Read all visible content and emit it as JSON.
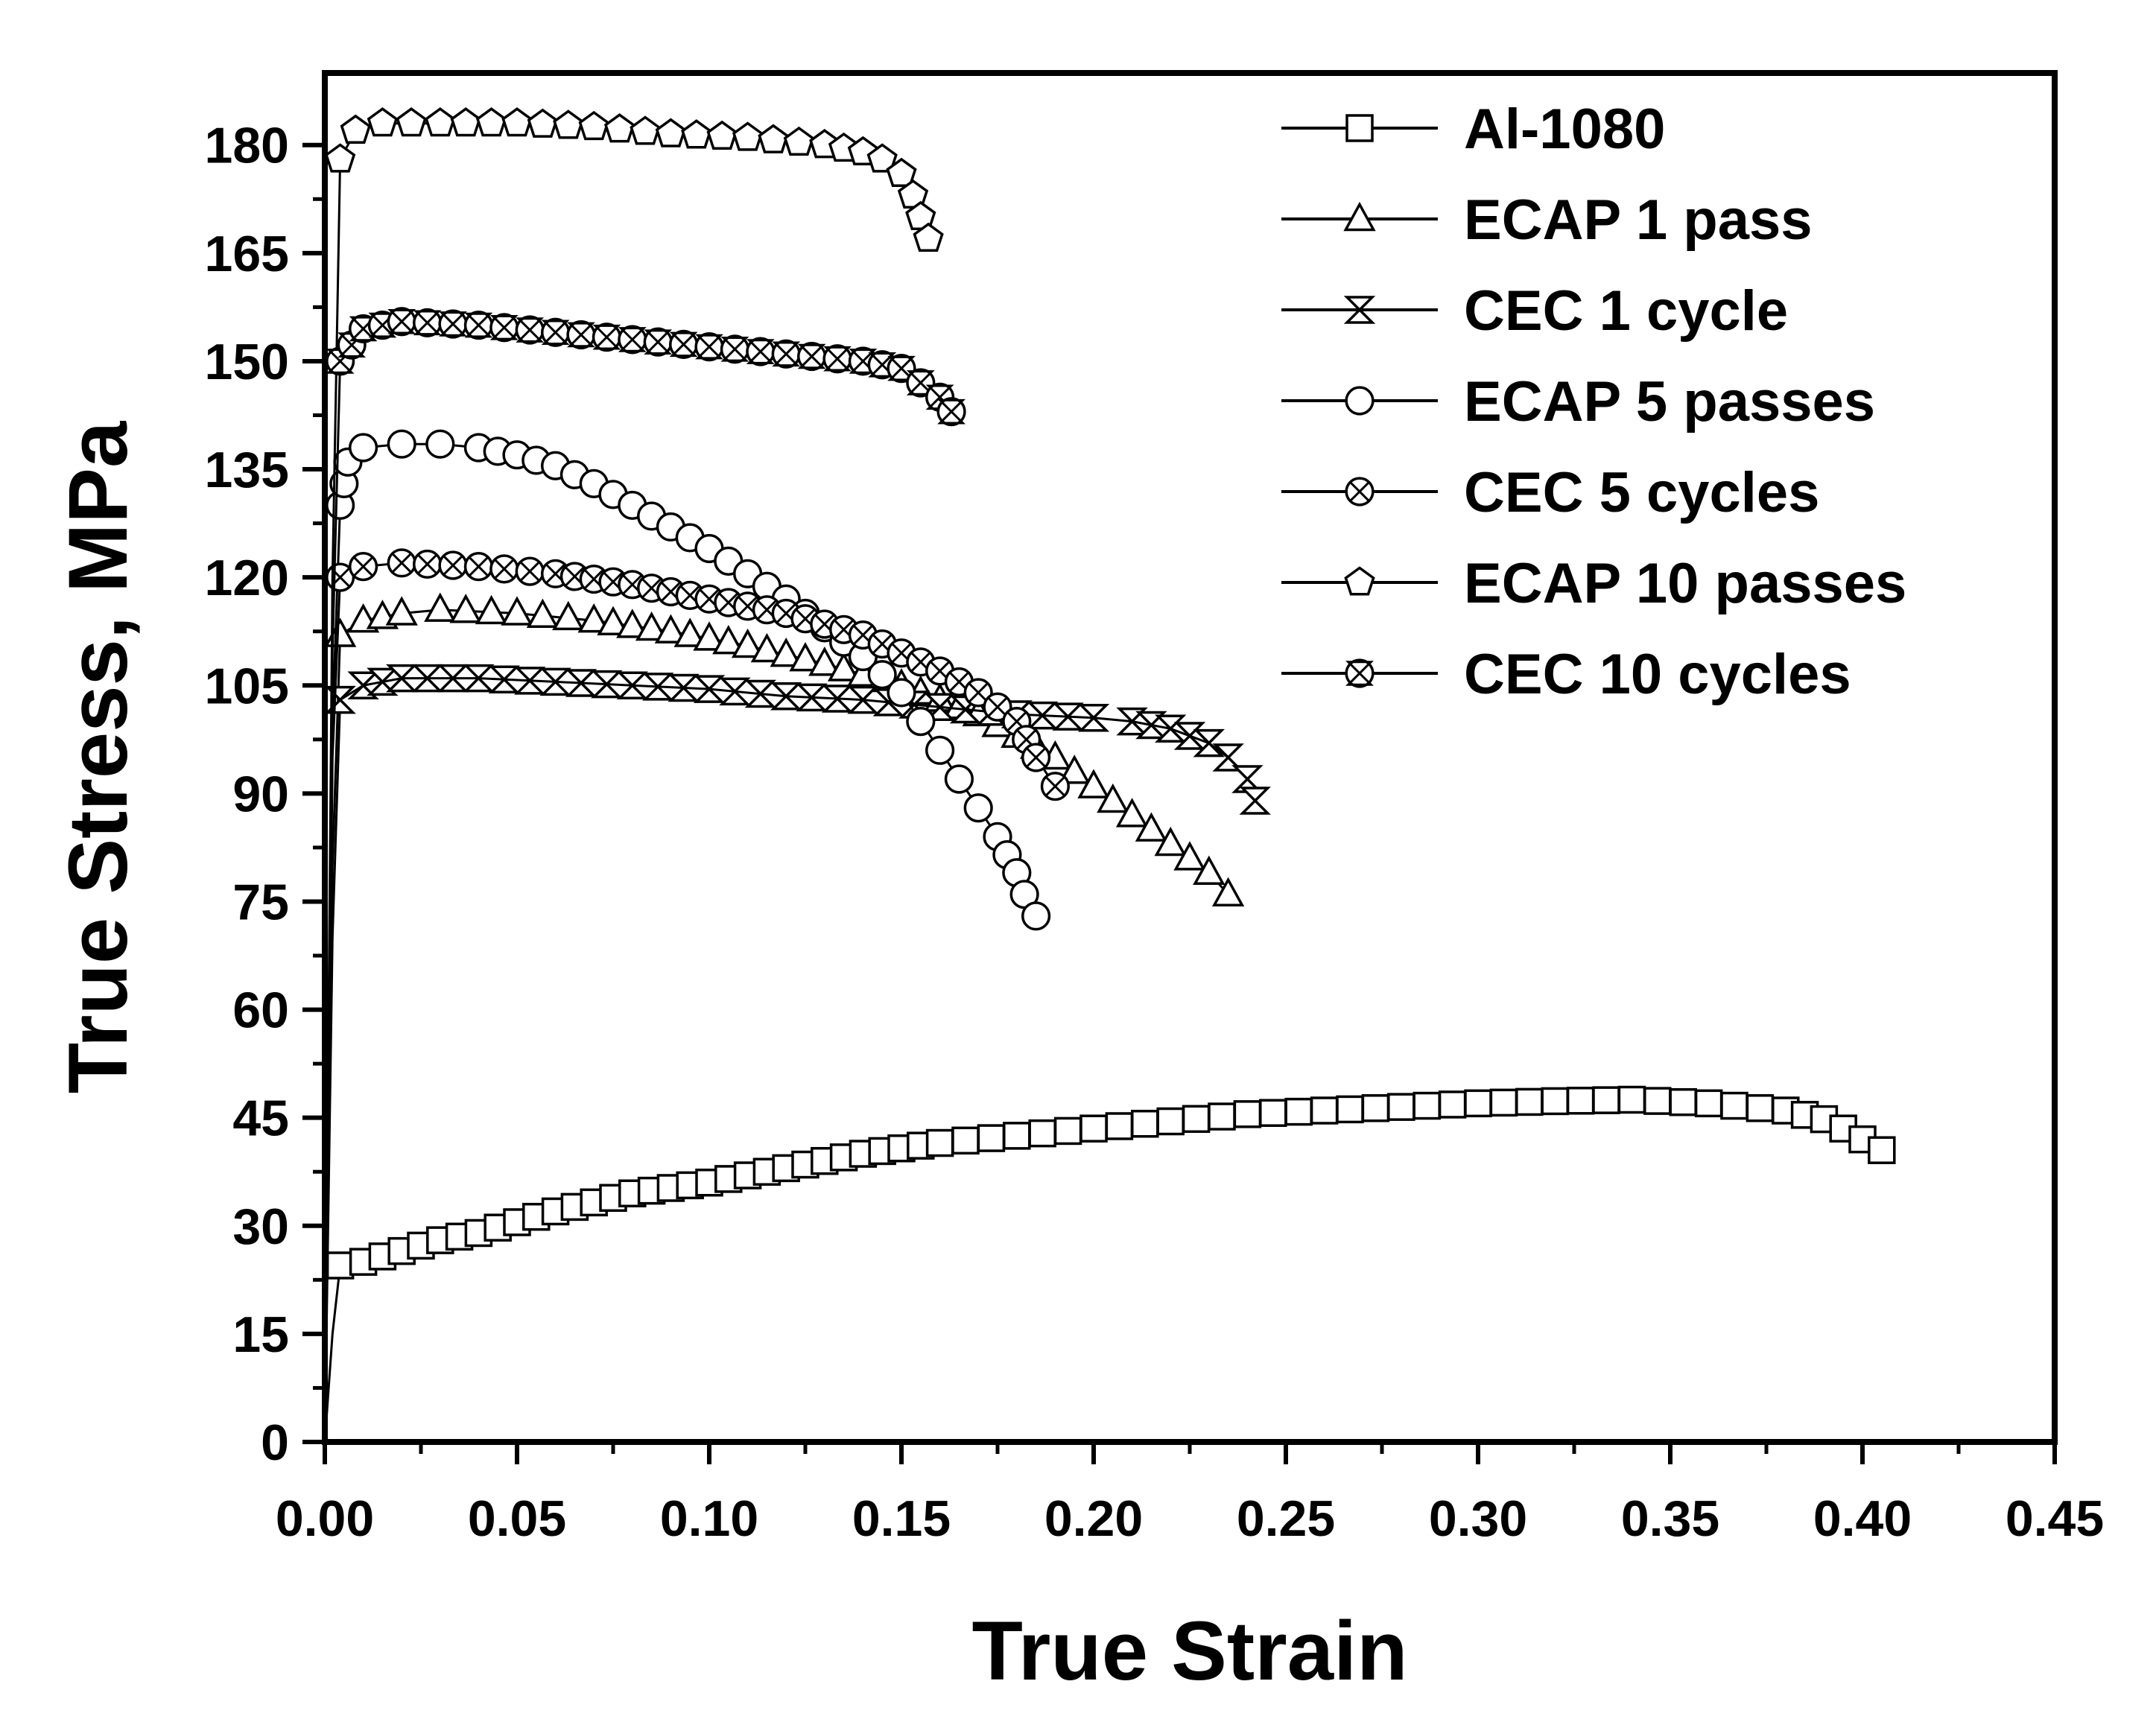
{
  "chart_data": {
    "type": "scatter",
    "title": "",
    "xlabel": "True Strain",
    "ylabel": "True Stress, MPa",
    "xlim": [
      0,
      0.45
    ],
    "ylim": [
      0,
      190
    ],
    "xticks": [
      0,
      0.05,
      0.1,
      0.15,
      0.2,
      0.25,
      0.3,
      0.35,
      0.4,
      0.45
    ],
    "xtick_labels": [
      "0.00",
      "0.05",
      "0.10",
      "0.15",
      "0.20",
      "0.25",
      "0.30",
      "0.35",
      "0.40",
      "0.45"
    ],
    "yticks": [
      0,
      15,
      30,
      45,
      60,
      75,
      90,
      105,
      120,
      135,
      150,
      165,
      180
    ],
    "ytick_labels": [
      "0",
      "15",
      "30",
      "45",
      "60",
      "75",
      "90",
      "105",
      "120",
      "135",
      "150",
      "165",
      "180"
    ],
    "legend_position": "top-right",
    "series": [
      {
        "name": "Al-1080",
        "marker": "square",
        "x": [
          0,
          0.002,
          0.004,
          0.01,
          0.02,
          0.03,
          0.04,
          0.06,
          0.08,
          0.1,
          0.12,
          0.14,
          0.16,
          0.18,
          0.2,
          0.22,
          0.24,
          0.26,
          0.28,
          0.3,
          0.32,
          0.34,
          0.36,
          0.38,
          0.39,
          0.395,
          0.4,
          0.405
        ],
        "y": [
          0,
          15,
          24.5,
          25,
          26.5,
          28,
          29,
          32,
          34.5,
          36,
          38,
          40,
          41.5,
          42.5,
          43.5,
          44.5,
          45.5,
          46,
          46.5,
          47,
          47.3,
          47.5,
          47,
          46,
          44.8,
          43.5,
          42,
          40.5
        ]
      },
      {
        "name": "ECAP 1 pass",
        "marker": "triangle",
        "x": [
          0,
          0.002,
          0.004,
          0.01,
          0.02,
          0.03,
          0.05,
          0.07,
          0.09,
          0.11,
          0.13,
          0.15,
          0.17,
          0.19,
          0.2,
          0.21,
          0.22,
          0.23,
          0.235
        ],
        "y": [
          0,
          80,
          112,
          114,
          115,
          115.5,
          115,
          114,
          112.5,
          110.5,
          108,
          105,
          101,
          95,
          91,
          87,
          83,
          79,
          76
        ]
      },
      {
        "name": "CEC 1 cycle",
        "marker": "x",
        "x": [
          0,
          0.002,
          0.004,
          0.01,
          0.02,
          0.04,
          0.06,
          0.08,
          0.1,
          0.12,
          0.14,
          0.16,
          0.18,
          0.2,
          0.21,
          0.22,
          0.23,
          0.235,
          0.24,
          0.242
        ],
        "y": [
          0,
          70,
          103,
          105,
          106,
          106,
          105.5,
          105,
          104.5,
          103.5,
          103,
          102,
          101,
          100.5,
          100,
          99,
          97,
          95,
          92,
          89
        ]
      },
      {
        "name": "ECAP 5 passes",
        "marker": "circle",
        "x": [
          0,
          0.002,
          0.004,
          0.006,
          0.01,
          0.02,
          0.03,
          0.04,
          0.05,
          0.06,
          0.07,
          0.08,
          0.09,
          0.1,
          0.11,
          0.12,
          0.13,
          0.14,
          0.15,
          0.155,
          0.16,
          0.165,
          0.17,
          0.175,
          0.18,
          0.182,
          0.185
        ],
        "y": [
          0,
          100,
          130,
          136,
          138,
          138.5,
          138.5,
          138,
          137,
          135.5,
          133,
          130,
          127,
          124,
          120.5,
          117,
          113,
          109,
          104,
          100,
          96,
          92,
          88,
          84,
          79,
          76,
          73
        ]
      },
      {
        "name": "CEC 5 cycles",
        "marker": "circle-x",
        "x": [
          0,
          0.002,
          0.004,
          0.01,
          0.02,
          0.04,
          0.06,
          0.08,
          0.1,
          0.12,
          0.14,
          0.16,
          0.17,
          0.18,
          0.185,
          0.19
        ],
        "y": [
          0,
          95,
          120,
          121.5,
          122,
          121.5,
          120.5,
          119,
          117,
          115,
          112,
          107,
          104,
          100,
          95,
          91
        ]
      },
      {
        "name": "ECAP 10 passes",
        "marker": "pentagon",
        "x": [
          0,
          0.002,
          0.004,
          0.008,
          0.015,
          0.03,
          0.05,
          0.07,
          0.09,
          0.11,
          0.13,
          0.14,
          0.145,
          0.15,
          0.153,
          0.155,
          0.157
        ],
        "y": [
          0,
          120,
          178,
          182,
          183,
          183,
          183,
          182.5,
          181.5,
          181,
          180,
          179,
          178,
          176,
          173,
          170,
          167
        ]
      },
      {
        "name": "CEC 10 cycles",
        "marker": "circle-star",
        "x": [
          0,
          0.002,
          0.004,
          0.01,
          0.02,
          0.04,
          0.06,
          0.08,
          0.1,
          0.12,
          0.14,
          0.15,
          0.155,
          0.16,
          0.163
        ],
        "y": [
          0,
          110,
          150,
          154.5,
          155.5,
          155,
          154,
          153,
          152,
          151,
          150,
          149,
          147,
          145,
          143
        ]
      }
    ]
  }
}
